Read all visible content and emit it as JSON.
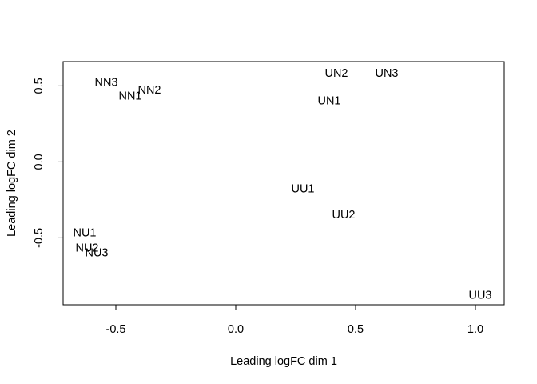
{
  "chart_data": {
    "type": "scatter",
    "marker": "text-labels",
    "xlabel": "Leading logFC dim 1",
    "ylabel": "Leading logFC dim 2",
    "xlim": [
      -0.72,
      1.12
    ],
    "ylim": [
      -0.94,
      0.66
    ],
    "xticks": [
      -0.5,
      0.0,
      0.5,
      1.0
    ],
    "xtick_labels": [
      "-0.5",
      "0.0",
      "0.5",
      "1.0"
    ],
    "yticks": [
      -0.5,
      0.0,
      0.5
    ],
    "ytick_labels": [
      "-0.5",
      "0.0",
      "0.5"
    ],
    "grid": false,
    "points": [
      {
        "label": "NN3",
        "x": -0.54,
        "y": 0.52
      },
      {
        "label": "NN1",
        "x": -0.44,
        "y": 0.43
      },
      {
        "label": "NN2",
        "x": -0.36,
        "y": 0.47
      },
      {
        "label": "UN2",
        "x": 0.42,
        "y": 0.58
      },
      {
        "label": "UN3",
        "x": 0.63,
        "y": 0.58
      },
      {
        "label": "UN1",
        "x": 0.39,
        "y": 0.4
      },
      {
        "label": "UU1",
        "x": 0.28,
        "y": -0.18
      },
      {
        "label": "UU2",
        "x": 0.45,
        "y": -0.35
      },
      {
        "label": "NU1",
        "x": -0.63,
        "y": -0.47
      },
      {
        "label": "NU2",
        "x": -0.62,
        "y": -0.57
      },
      {
        "label": "NU3",
        "x": -0.58,
        "y": -0.6
      },
      {
        "label": "UU3",
        "x": 1.02,
        "y": -0.88
      }
    ]
  }
}
